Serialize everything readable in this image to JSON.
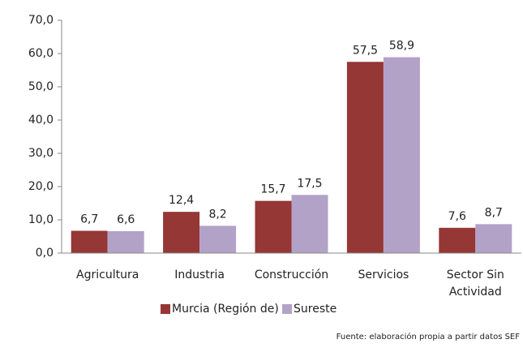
{
  "chart_data": {
    "type": "bar",
    "categories": [
      "Agricultura",
      "Industria",
      "Construcción",
      "Servicios",
      "Sector Sin Actividad"
    ],
    "series": [
      {
        "name": "Murcia (Región de)",
        "color": "#953735",
        "values": [
          6.7,
          12.4,
          15.7,
          57.5,
          7.6
        ],
        "value_labels": [
          "6,7",
          "12,4",
          "15,7",
          "57,5",
          "7,6"
        ]
      },
      {
        "name": "Sureste",
        "color": "#b3a2c7",
        "values": [
          6.6,
          8.2,
          17.5,
          58.9,
          8.7
        ],
        "value_labels": [
          "6,6",
          "8,2",
          "17,5",
          "58,9",
          "8,7"
        ]
      }
    ],
    "ylim": [
      0,
      70
    ],
    "yticks": [
      {
        "value": 0,
        "label": "0,0"
      },
      {
        "value": 10,
        "label": "10,0"
      },
      {
        "value": 20,
        "label": "20,0"
      },
      {
        "value": 30,
        "label": "30,0"
      },
      {
        "value": 40,
        "label": "40,0"
      },
      {
        "value": 50,
        "label": "50,0"
      },
      {
        "value": 60,
        "label": "60,0"
      },
      {
        "value": 70,
        "label": "70,0"
      }
    ],
    "grid": false,
    "legend": "bottom",
    "source": "Fuente: elaboración propia a partir datos SEF"
  }
}
